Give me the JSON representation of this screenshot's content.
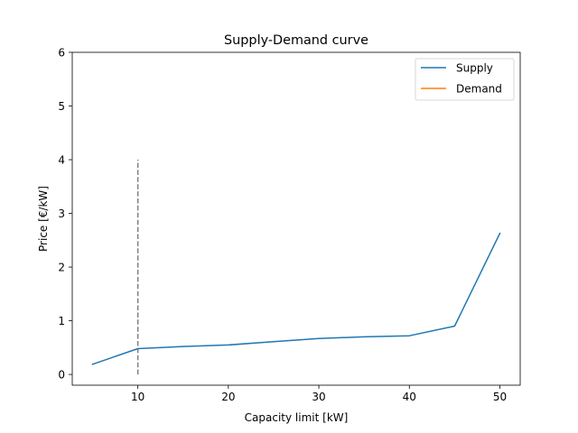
{
  "chart_data": {
    "type": "line",
    "title": "Supply-Demand curve",
    "xlabel": "Capacity limit [kW]",
    "ylabel": "Price [€/kW]",
    "xlim": [
      2.75,
      52.25
    ],
    "ylim": [
      -0.2,
      6
    ],
    "xticks": [
      10,
      20,
      30,
      40,
      50
    ],
    "yticks": [
      0,
      1,
      2,
      3,
      4,
      5,
      6
    ],
    "legend_placement": "top-right",
    "grid": false,
    "series": [
      {
        "name": "Supply",
        "color": "#1f77b4",
        "x": [
          5,
          10,
          15,
          20,
          25,
          30,
          35,
          40,
          45,
          50
        ],
        "y": [
          0.19,
          0.48,
          0.52,
          0.55,
          0.61,
          0.67,
          0.7,
          0.72,
          0.9,
          2.63
        ]
      },
      {
        "name": "Demand",
        "color": "#ff7f0e",
        "x": [],
        "y": []
      }
    ],
    "reference_line": {
      "style": "dashed",
      "color": "#7f7f7f",
      "x": 10,
      "y_range": [
        0,
        4
      ]
    }
  }
}
